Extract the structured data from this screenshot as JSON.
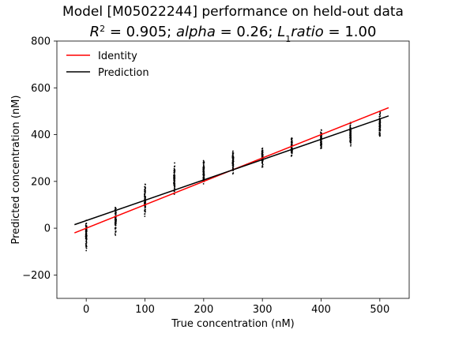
{
  "chart_data": {
    "type": "scatter",
    "title_line1": "Model [M05022244] performance on held-out data",
    "title_line2": {
      "r2_symbol": "R",
      "r2_exp": "2",
      "r2_eq": " = 0.905; ",
      "alpha": "alpha",
      "alpha_eq": " = 0.26; ",
      "l1_L": "L",
      "l1_sub": "1",
      "l1_ratio": "ratio",
      "l1_eq": " = 1.00"
    },
    "xlabel": "True concentration (nM)",
    "ylabel": "Predicted concentration (nM)",
    "xlim": [
      -50,
      550
    ],
    "ylim": [
      -300,
      800
    ],
    "xticks": [
      0,
      100,
      200,
      300,
      400,
      500
    ],
    "yticks": [
      -200,
      0,
      200,
      400,
      600,
      800
    ],
    "ytick_labels": [
      "−200",
      "0",
      "200",
      "400",
      "600",
      "800"
    ],
    "legend": {
      "position": "top-left",
      "entries": [
        {
          "label": "Identity",
          "color": "#ff0000"
        },
        {
          "label": "Prediction",
          "color": "#000000"
        }
      ]
    },
    "lines": [
      {
        "name": "Identity",
        "color": "#ff0000",
        "x": [
          -20,
          515
        ],
        "y": [
          -20,
          515
        ]
      },
      {
        "name": "Prediction",
        "color": "#000000",
        "x": [
          -20,
          515
        ],
        "y": [
          15,
          480
        ]
      }
    ],
    "scatter": {
      "color": "#000000",
      "x": [
        0,
        50,
        100,
        150,
        200,
        250,
        300,
        350,
        400,
        450,
        500
      ],
      "y_ranges": [
        [
          -105,
          45
        ],
        [
          -35,
          115
        ],
        [
          35,
          215
        ],
        [
          120,
          290
        ],
        [
          180,
          305
        ],
        [
          225,
          345
        ],
        [
          255,
          355
        ],
        [
          290,
          400
        ],
        [
          325,
          430
        ],
        [
          340,
          470
        ],
        [
          365,
          515
        ]
      ]
    }
  }
}
